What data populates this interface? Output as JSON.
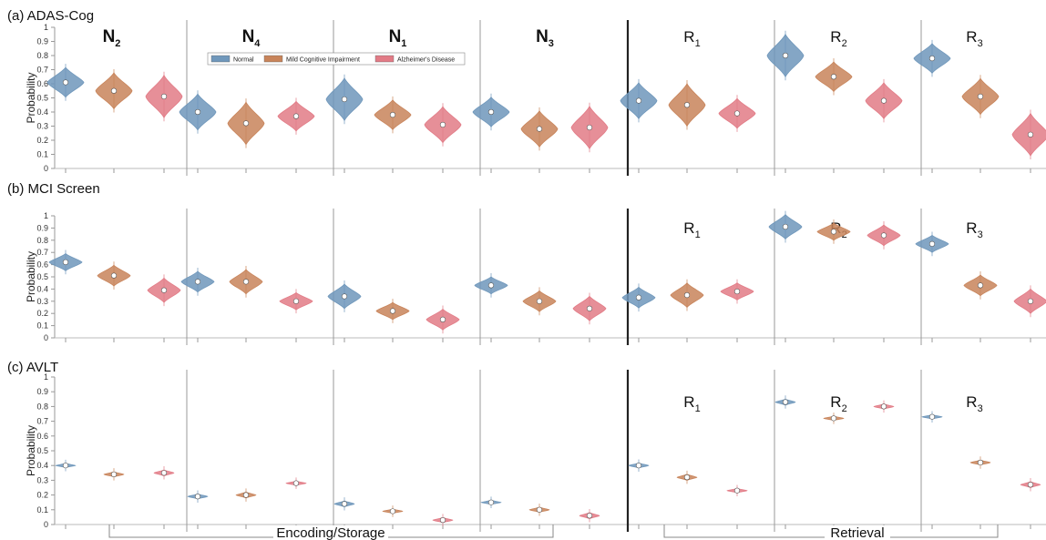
{
  "colors": {
    "Normal": "#6f97bb",
    "Mild Cognitive Impairment": "#c8845a",
    "Alzheimer's Disease": "#e27b86"
  },
  "legend": [
    "Normal",
    "Mild Cognitive Impairment",
    "Alzheimer's Disease"
  ],
  "ylabel": "Probability",
  "yticks": [
    "0",
    "0.1",
    "0.2",
    "0.3",
    "0.4",
    "0.5",
    "0.6",
    "0.7",
    "0.8",
    "0.9",
    "1"
  ],
  "bottom_labels": [
    "Encoding/Storage",
    "Retrieval"
  ],
  "panel_titles": [
    "(a) ADAS-Cog",
    "(b) MCI Screen",
    "(c) AVLT"
  ],
  "chart_data": [
    {
      "type": "violin",
      "title": "(a) ADAS-Cog",
      "ylabel": "Probability",
      "ylim": [
        0,
        1
      ],
      "series_names": [
        "Normal",
        "Mild Cognitive Impairment",
        "Alzheimer's Disease"
      ],
      "groups": [
        {
          "label": "N",
          "sub": "2",
          "values": [
            0.61,
            0.55,
            0.51
          ]
        },
        {
          "label": "N",
          "sub": "4",
          "values": [
            0.4,
            0.32,
            0.37
          ]
        },
        {
          "label": "N",
          "sub": "1",
          "values": [
            0.49,
            0.38,
            0.31
          ]
        },
        {
          "label": "N",
          "sub": "3",
          "values": [
            0.4,
            0.28,
            0.29
          ]
        },
        {
          "label": "R",
          "sub": "1",
          "values": [
            0.48,
            0.45,
            0.39
          ]
        },
        {
          "label": "R",
          "sub": "2",
          "values": [
            0.8,
            0.65,
            0.48
          ]
        },
        {
          "label": "R",
          "sub": "3",
          "values": [
            0.78,
            0.51,
            0.24
          ]
        }
      ]
    },
    {
      "type": "violin",
      "title": "(b) MCI Screen",
      "ylabel": "Probability",
      "ylim": [
        0,
        1
      ],
      "series_names": [
        "Normal",
        "Mild Cognitive Impairment",
        "Alzheimer's Disease"
      ],
      "groups": [
        {
          "label": "",
          "sub": "",
          "values": [
            0.62,
            0.51,
            0.39
          ]
        },
        {
          "label": "",
          "sub": "",
          "values": [
            0.46,
            0.46,
            0.3
          ]
        },
        {
          "label": "",
          "sub": "",
          "values": [
            0.34,
            0.22,
            0.15
          ]
        },
        {
          "label": "",
          "sub": "",
          "values": [
            0.43,
            0.3,
            0.24
          ]
        },
        {
          "label": "R",
          "sub": "1",
          "values": [
            0.33,
            0.35,
            0.38
          ]
        },
        {
          "label": "R",
          "sub": "2",
          "values": [
            0.91,
            0.87,
            0.84
          ]
        },
        {
          "label": "R",
          "sub": "3",
          "values": [
            0.77,
            0.43,
            0.3
          ]
        }
      ]
    },
    {
      "type": "violin",
      "title": "(c) AVLT",
      "ylabel": "Probability",
      "ylim": [
        0,
        1
      ],
      "series_names": [
        "Normal",
        "Mild Cognitive Impairment",
        "Alzheimer's Disease"
      ],
      "groups": [
        {
          "label": "",
          "sub": "",
          "values": [
            0.4,
            0.34,
            0.35
          ]
        },
        {
          "label": "",
          "sub": "",
          "values": [
            0.19,
            0.2,
            0.28
          ]
        },
        {
          "label": "",
          "sub": "",
          "values": [
            0.14,
            0.09,
            0.03
          ]
        },
        {
          "label": "",
          "sub": "",
          "values": [
            0.15,
            0.1,
            0.06
          ]
        },
        {
          "label": "R",
          "sub": "1",
          "values": [
            0.4,
            0.32,
            0.23
          ]
        },
        {
          "label": "R",
          "sub": "2",
          "values": [
            0.83,
            0.72,
            0.8
          ]
        },
        {
          "label": "R",
          "sub": "3",
          "values": [
            0.73,
            0.42,
            0.27
          ]
        }
      ]
    }
  ]
}
